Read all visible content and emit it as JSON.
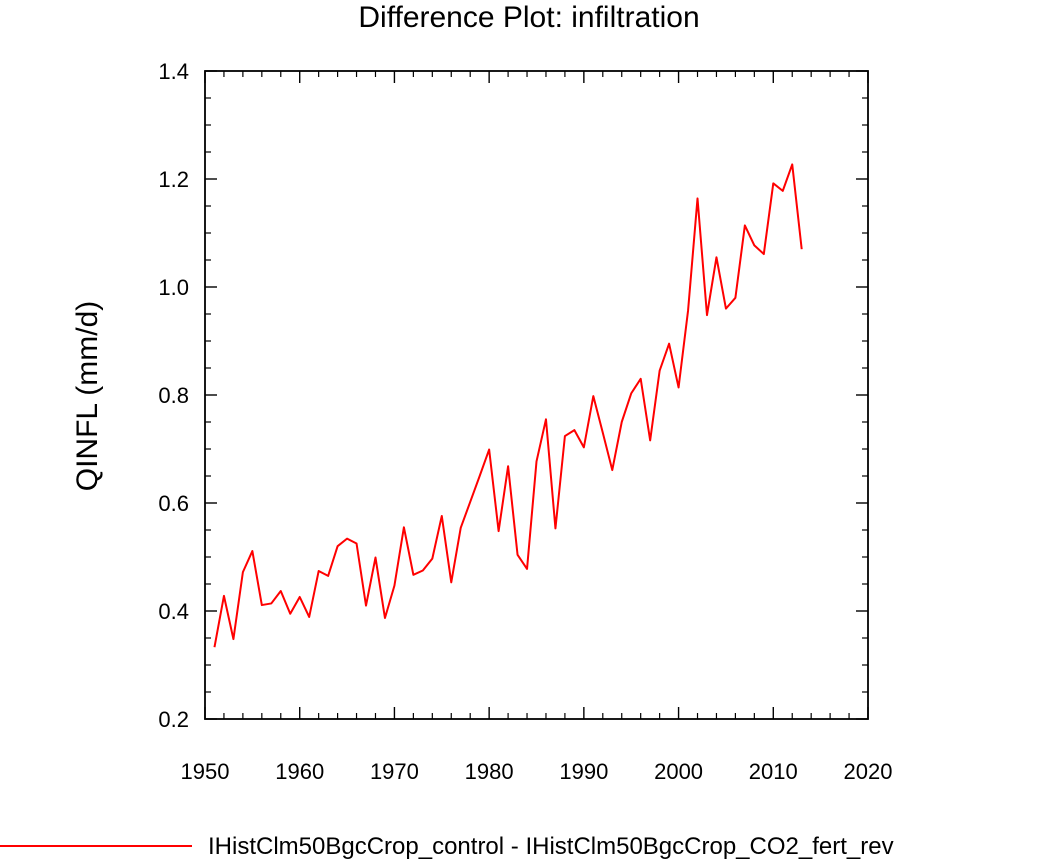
{
  "chart_data": {
    "type": "line",
    "title": "Difference Plot: infiltration",
    "ylabel": "QINFL  (mm/d)",
    "xlabel": "",
    "xlim": [
      1950,
      2020
    ],
    "ylim": [
      0.2,
      1.4
    ],
    "x_ticks": [
      1950,
      1960,
      1970,
      1980,
      1990,
      2000,
      2010,
      2020
    ],
    "y_ticks": [
      0.2,
      0.4,
      0.6,
      0.8,
      1.0,
      1.2,
      1.4
    ],
    "x_tick_labels": [
      "1950",
      "1960",
      "1970",
      "1980",
      "1990",
      "2000",
      "2010",
      "2020"
    ],
    "y_tick_labels": [
      "0.2",
      "0.4",
      "0.6",
      "0.8",
      "1.0",
      "1.2",
      "1.4"
    ],
    "grid": false,
    "legend_position": "bottom",
    "series": [
      {
        "name": "IHistClm50BgcCrop_control - IHistClm50BgcCrop_CO2_fert_rev",
        "color": "#ff0000",
        "x": [
          1951,
          1952,
          1953,
          1954,
          1955,
          1956,
          1957,
          1958,
          1959,
          1960,
          1961,
          1962,
          1963,
          1964,
          1965,
          1966,
          1967,
          1968,
          1969,
          1970,
          1971,
          1972,
          1973,
          1974,
          1975,
          1976,
          1977,
          1978,
          1979,
          1980,
          1981,
          1982,
          1983,
          1984,
          1985,
          1986,
          1987,
          1988,
          1989,
          1990,
          1991,
          1992,
          1993,
          1994,
          1995,
          1996,
          1997,
          1998,
          1999,
          2000,
          2001,
          2002,
          2003,
          2004,
          2005,
          2006,
          2007,
          2008,
          2009,
          2010,
          2011,
          2012,
          2013
        ],
        "values": [
          0.333,
          0.428,
          0.348,
          0.472,
          0.511,
          0.411,
          0.414,
          0.437,
          0.395,
          0.426,
          0.389,
          0.474,
          0.465,
          0.52,
          0.534,
          0.525,
          0.41,
          0.499,
          0.387,
          0.447,
          0.555,
          0.467,
          0.475,
          0.497,
          0.576,
          0.453,
          0.554,
          0.602,
          0.65,
          0.699,
          0.548,
          0.668,
          0.504,
          0.478,
          0.677,
          0.755,
          0.553,
          0.724,
          0.735,
          0.703,
          0.798,
          0.73,
          0.661,
          0.75,
          0.803,
          0.83,
          0.716,
          0.845,
          0.895,
          0.814,
          0.956,
          1.164,
          0.948,
          1.055,
          0.96,
          0.98,
          1.114,
          1.077,
          1.061,
          1.192,
          1.178,
          1.227,
          1.07
        ]
      }
    ]
  }
}
